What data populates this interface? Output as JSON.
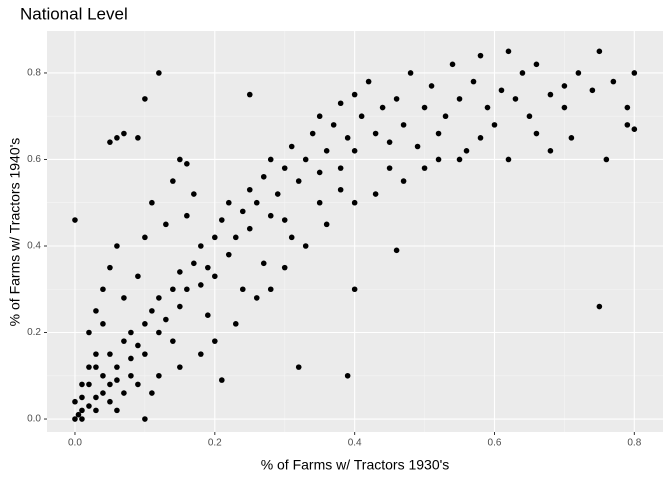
{
  "chart_data": {
    "type": "scatter",
    "title": "National Level",
    "x_label": "% of Farms w/ Tractors 1930's",
    "y_label": "% of Farms w/ Tractors 1940's",
    "color": "#000000",
    "grid": true,
    "xlim": [
      -0.04,
      0.841
    ],
    "ylim": [
      -0.03,
      0.897
    ],
    "xticks": [
      {
        "value": 0,
        "label": "0.0"
      },
      0.2,
      0.4,
      0.6,
      0.8
    ],
    "yticks": [
      {
        "value": 0,
        "label": "0.0"
      },
      0.2,
      0.4,
      0.6,
      0.8
    ],
    "x": [
      0,
      0.005,
      0.01,
      0.02,
      0.01,
      0.02,
      0.03,
      0.04,
      0.03,
      0.05,
      0.05,
      0.06,
      0.07,
      0.08,
      0.08,
      0.09,
      0.1,
      0.1,
      0.11,
      0.12,
      0.12,
      0.13,
      0.14,
      0.15,
      0.15,
      0.16,
      0.17,
      0.18,
      0.18,
      0.19,
      0.2,
      0.2,
      0.21,
      0.22,
      0.22,
      0.23,
      0.24,
      0.25,
      0.25,
      0.26,
      0.27,
      0.28,
      0.28,
      0.29,
      0.3,
      0.3,
      0.31,
      0.32,
      0.33,
      0.34,
      0.35,
      0.35,
      0.36,
      0.37,
      0.38,
      0.38,
      0.39,
      0.4,
      0.4,
      0.41,
      0.42,
      0.43,
      0.44,
      0.45,
      0.46,
      0.47,
      0.48,
      0.49,
      0.5,
      0.51,
      0.52,
      0.53,
      0.54,
      0.55,
      0.56,
      0.57,
      0.58,
      0.59,
      0.6,
      0.61,
      0.63,
      0.64,
      0.65,
      0.66,
      0.68,
      0.7,
      0.72,
      0.74,
      0.77,
      0.79,
      0.02,
      0.03,
      0.04,
      0.05,
      0.06,
      0.04,
      0.07,
      0.09,
      0.1,
      0.11,
      0.13,
      0.14,
      0.16,
      0.17,
      0.03,
      0.05,
      0.07,
      0.09,
      0.12,
      0.15,
      0.18,
      0.2,
      0.23,
      0.26,
      0.28,
      0.3,
      0.33,
      0.36,
      0.4,
      0.43,
      0.47,
      0.5,
      0.55,
      0.02,
      0.01,
      0.04,
      0.06,
      0.08,
      0.03,
      0.0,
      0.01,
      0.06,
      0.11,
      0.14,
      0.19,
      0.24,
      0.27,
      0.31,
      0.35,
      0.38,
      0.45,
      0.52,
      0.58,
      0.62,
      0.66,
      0.7,
      0.0,
      0.12,
      0.1,
      0.75,
      0.8,
      0.62,
      0.75,
      0.79,
      0.8,
      0.76,
      0.71,
      0.68,
      0.32,
      0.1,
      0.21,
      0.39,
      0.4,
      0.46,
      0.25,
      0.06,
      0.07,
      0.05,
      0.09,
      0.15,
      0.16
    ],
    "y": [
      0,
      0.01,
      0.02,
      0.03,
      0.05,
      0.08,
      0.05,
      0.1,
      0.12,
      0.08,
      0.15,
      0.12,
      0.18,
      0.14,
      0.2,
      0.17,
      0.22,
      0.15,
      0.25,
      0.2,
      0.28,
      0.23,
      0.3,
      0.26,
      0.34,
      0.3,
      0.36,
      0.31,
      0.4,
      0.35,
      0.42,
      0.33,
      0.46,
      0.38,
      0.5,
      0.42,
      0.48,
      0.44,
      0.53,
      0.5,
      0.56,
      0.47,
      0.6,
      0.52,
      0.58,
      0.46,
      0.63,
      0.55,
      0.6,
      0.66,
      0.57,
      0.7,
      0.62,
      0.68,
      0.73,
      0.58,
      0.65,
      0.75,
      0.62,
      0.7,
      0.78,
      0.66,
      0.72,
      0.58,
      0.74,
      0.68,
      0.8,
      0.63,
      0.72,
      0.77,
      0.66,
      0.7,
      0.82,
      0.74,
      0.62,
      0.78,
      0.84,
      0.72,
      0.68,
      0.76,
      0.74,
      0.8,
      0.7,
      0.82,
      0.75,
      0.77,
      0.8,
      0.76,
      0.78,
      0.72,
      0.2,
      0.25,
      0.3,
      0.35,
      0.4,
      0.22,
      0.28,
      0.33,
      0.42,
      0.5,
      0.45,
      0.55,
      0.47,
      0.52,
      0.02,
      0.04,
      0.06,
      0.08,
      0.1,
      0.12,
      0.15,
      0.18,
      0.22,
      0.28,
      0.3,
      0.35,
      0.4,
      0.45,
      0.5,
      0.52,
      0.55,
      0.58,
      0.6,
      0.12,
      0.08,
      0.06,
      0.09,
      0.1,
      0.15,
      0.04,
      0.0,
      0.02,
      0.06,
      0.18,
      0.24,
      0.3,
      0.36,
      0.42,
      0.5,
      0.53,
      0.64,
      0.6,
      0.65,
      0.6,
      0.66,
      0.72,
      0.46,
      0.8,
      0.74,
      0.26,
      0.8,
      0.85,
      0.85,
      0.68,
      0.67,
      0.6,
      0.65,
      0.62,
      0.12,
      0.0,
      0.09,
      0.1,
      0.3,
      0.39,
      0.75,
      0.65,
      0.66,
      0.64,
      0.65,
      0.6,
      0.59
    ]
  }
}
